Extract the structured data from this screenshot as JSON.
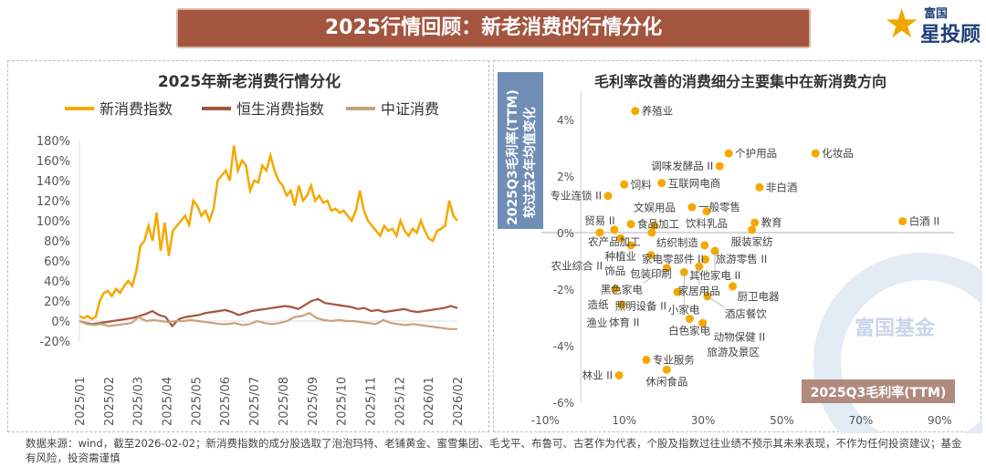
{
  "banner": {
    "title": "2025行情回顾：新老消费的行情分化"
  },
  "logo": {
    "brand": "富国",
    "product": "星投顾"
  },
  "watermark": "富国基金",
  "footer": "数据来源：wind，截至2026-02-02；新消费指数的成分股选取了泡泡玛特、老铺黄金、蜜雪集团、毛戈平、布鲁可、古茗作为代表，个股及指数过往业绩不预示其未来表现，不作为任何投资建议；基金有风险，投资需谨慎",
  "chart_data": [
    {
      "type": "line",
      "title": "2025年新老消费行情分化",
      "legend_position": "top",
      "ylim": [
        -20,
        180
      ],
      "yticks": [
        "180%",
        "160%",
        "140%",
        "120%",
        "100%",
        "80%",
        "60%",
        "40%",
        "20%",
        "0%",
        "-20%"
      ],
      "xticks": [
        "2025/01",
        "2025/02",
        "2025/03",
        "2025/04",
        "2025/05",
        "2025/06",
        "2025/07",
        "2025/08",
        "2025/09",
        "2025/10",
        "2025/11",
        "2025/12",
        "2026/01",
        "2026/02"
      ],
      "colors": {
        "新消费指数": "#f5a800",
        "恒生消费指数": "#a4553f",
        "中证消费": "#c9a27e"
      },
      "series": [
        {
          "name": "新消费指数",
          "values": [
            5,
            3,
            5,
            2,
            4,
            20,
            28,
            30,
            25,
            32,
            28,
            35,
            40,
            35,
            50,
            75,
            80,
            95,
            80,
            108,
            70,
            98,
            65,
            90,
            95,
            100,
            105,
            96,
            120,
            115,
            105,
            110,
            100,
            112,
            140,
            145,
            150,
            140,
            175,
            150,
            160,
            155,
            130,
            140,
            138,
            155,
            150,
            165,
            150,
            140,
            135,
            125,
            130,
            115,
            135,
            120,
            125,
            135,
            120,
            125,
            118,
            120,
            110,
            112,
            108,
            110,
            105,
            100,
            110,
            130,
            110,
            100,
            95,
            90,
            85,
            95,
            90,
            92,
            85,
            100,
            90,
            85,
            92,
            88,
            100,
            90,
            82,
            80,
            90,
            92,
            95,
            120,
            105,
            100
          ]
        },
        {
          "name": "恒生消费指数",
          "values": [
            0,
            -2,
            -3,
            -2,
            -1,
            0,
            1,
            2,
            3,
            5,
            7,
            10,
            6,
            4,
            -5,
            2,
            4,
            5,
            6,
            8,
            9,
            10,
            11,
            9,
            6,
            8,
            10,
            11,
            12,
            13,
            14,
            15,
            14,
            12,
            16,
            20,
            22,
            18,
            17,
            16,
            15,
            14,
            12,
            13,
            10,
            11,
            9,
            10,
            11,
            12,
            10,
            9,
            10,
            11,
            12,
            13,
            15,
            13
          ]
        },
        {
          "name": "中证消费",
          "values": [
            0,
            -3,
            -4,
            -3,
            -5,
            -4,
            -3,
            -2,
            4,
            0,
            1,
            0,
            -1,
            0,
            0,
            1,
            0,
            -1,
            -2,
            -3,
            -3,
            -2,
            -4,
            -3,
            0,
            -2,
            -3,
            -2,
            0,
            4,
            5,
            8,
            3,
            1,
            0,
            1,
            0,
            0,
            -1,
            -2,
            -3,
            1,
            -2,
            -3,
            -4,
            -3,
            -4,
            -5,
            -6,
            -7,
            -8,
            -8
          ]
        }
      ]
    },
    {
      "type": "scatter",
      "title": "毛利率改善的消费细分主要集中在新消费方向",
      "xlabel": "2025Q3毛利率(TTM)",
      "ylabel": "2025Q3毛利率(TTM)较过去2年均值变化",
      "xlim": [
        -10,
        90
      ],
      "ylim": [
        -6,
        5
      ],
      "xticks": [
        "-10%",
        "10%",
        "30%",
        "50%",
        "70%",
        "90%"
      ],
      "yticks": [
        "4%",
        "2%",
        "0%",
        "-2%",
        "-4%",
        "-6%"
      ],
      "color": "#f5a800",
      "points": [
        {
          "name": "养殖业",
          "x": 12.8,
          "y": 4.3
        },
        {
          "name": "个护用品",
          "x": 36.5,
          "y": 2.8
        },
        {
          "name": "调味发酵品 II",
          "x": 34.2,
          "y": 2.35
        },
        {
          "name": "化妆品",
          "x": 58.5,
          "y": 2.8
        },
        {
          "name": "饲料",
          "x": 10,
          "y": 1.7
        },
        {
          "name": "互联网电商",
          "x": 19.5,
          "y": 1.75
        },
        {
          "name": "非白酒",
          "x": 44.3,
          "y": 1.6
        },
        {
          "name": "专业连锁 II",
          "x": 5.9,
          "y": 1.3
        },
        {
          "name": "一般零售",
          "x": 27.2,
          "y": 0.9
        },
        {
          "name": "饮料乳品",
          "x": 30.9,
          "y": 0.75
        },
        {
          "name": "食品加工",
          "x": 11.7,
          "y": 0.3
        },
        {
          "name": "农产品加工",
          "x": 7.5,
          "y": 0.1
        },
        {
          "name": "文娱用品",
          "x": 17.7,
          "y": 0.25
        },
        {
          "name": "教育",
          "x": 43.1,
          "y": 0.35
        },
        {
          "name": "白酒 II",
          "x": 80.6,
          "y": 0.4
        },
        {
          "name": "服装家纺",
          "x": 42.4,
          "y": 0.1
        },
        {
          "name": "贸易 II",
          "x": 3.8,
          "y": 0
        },
        {
          "name": "纺织制造",
          "x": 17,
          "y": 0
        },
        {
          "name": "种植业",
          "x": 9.1,
          "y": -0.2
        },
        {
          "name": "家电零部件 II",
          "x": 11.7,
          "y": -0.45
        },
        {
          "name": "旅游零售 II",
          "x": 30.4,
          "y": -0.45
        },
        {
          "name": "其他家电 II",
          "x": 33,
          "y": -0.65
        },
        {
          "name": "包装印刷",
          "x": 16.8,
          "y": -0.8
        },
        {
          "name": "家居用品",
          "x": 29,
          "y": -1.2
        },
        {
          "name": "",
          "x": 30.6,
          "y": -0.95
        },
        {
          "name": "黑色家电",
          "x": 20.8,
          "y": -1.25
        },
        {
          "name": "小家电",
          "x": 25.2,
          "y": -1.4
        },
        {
          "name": "厨卫电器",
          "x": 37.5,
          "y": -1.9
        },
        {
          "name": "饰品",
          "x": 7.7,
          "y": -2.0
        },
        {
          "name": "照明设备 II",
          "x": 23.5,
          "y": -2.1
        },
        {
          "name": "酒店餐饮",
          "x": 31.1,
          "y": -2.25
        },
        {
          "name": "造纸",
          "x": 9.4,
          "y": -2.55
        },
        {
          "name": "白色家电",
          "x": 26.6,
          "y": -3.05
        },
        {
          "name": "动物保健 II",
          "x": 29.9,
          "y": -3.2
        },
        {
          "name": "专业服务",
          "x": 15.6,
          "y": -4.5
        },
        {
          "name": "休闲食品",
          "x": 20.8,
          "y": -4.85
        },
        {
          "name": "林业 II",
          "x": 8.7,
          "y": -5.05
        }
      ],
      "extra_labels": [
        {
          "name": "农业综合 II"
        },
        {
          "name": "体育 II"
        },
        {
          "name": "渔业"
        },
        {
          "name": "旅游及景区"
        }
      ]
    }
  ]
}
